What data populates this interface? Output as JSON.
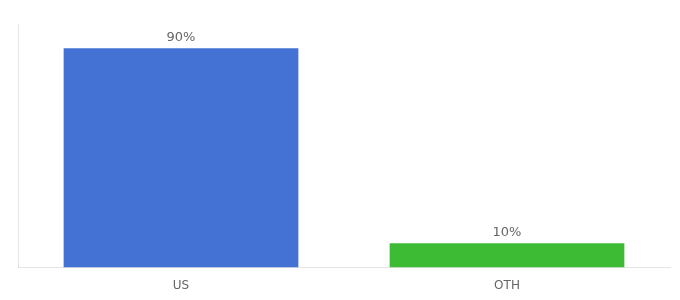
{
  "chart_data": {
    "type": "bar",
    "categories": [
      "US",
      "OTH"
    ],
    "values": [
      90,
      10
    ],
    "value_labels": [
      "90%",
      "10%"
    ],
    "colors": [
      "#4472d4",
      "#3dbb35"
    ],
    "ylim": [
      0,
      100
    ],
    "grid": false,
    "data_labels": true,
    "tick_labels": "x"
  }
}
